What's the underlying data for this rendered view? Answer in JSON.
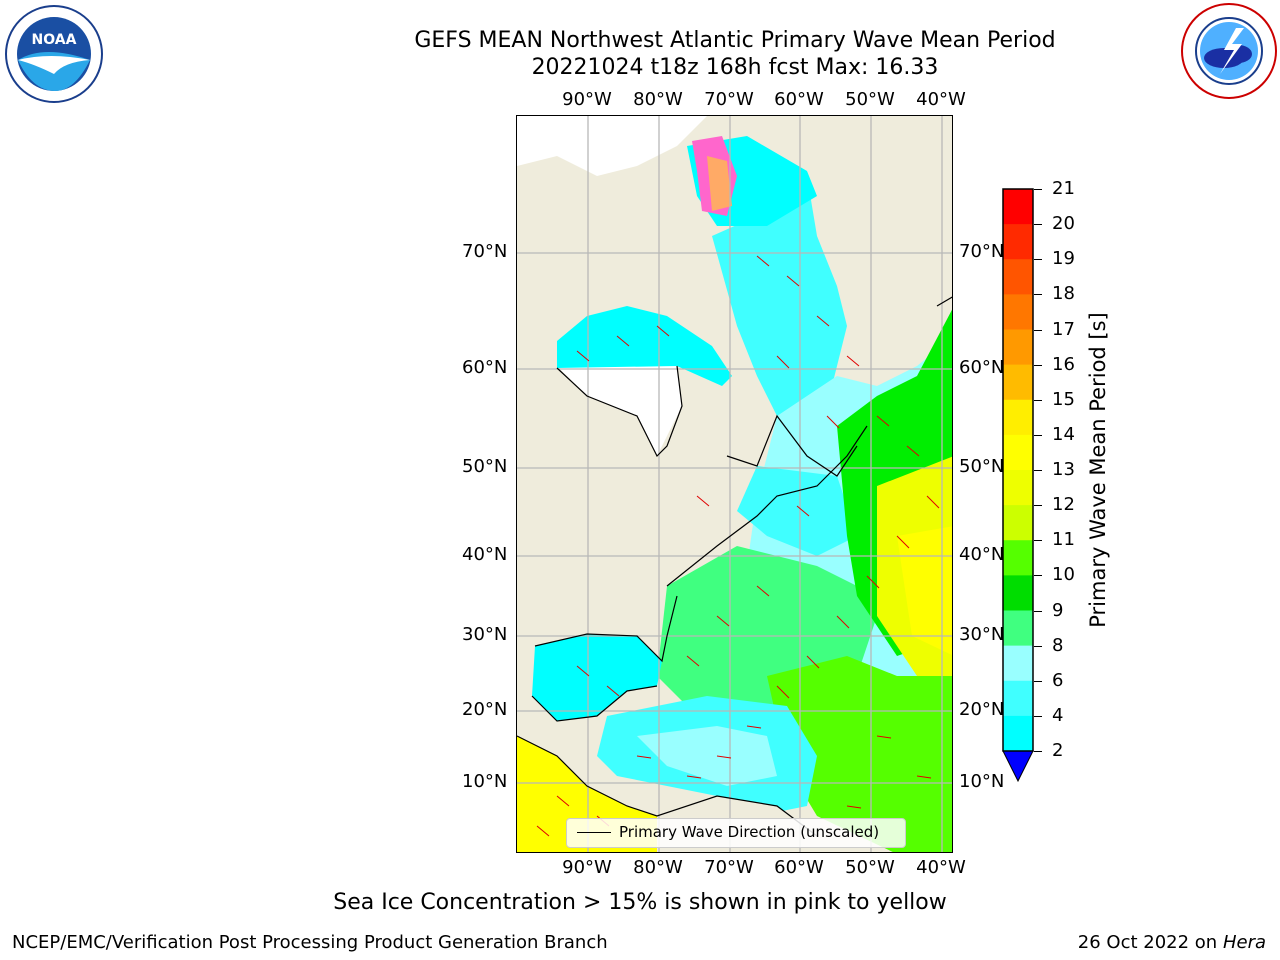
{
  "header": {
    "title_line1": "GEFS MEAN Northwest Atlantic Primary Wave Mean Period",
    "title_line2": "20221024 t18z 168h fcst   Max: 16.33"
  },
  "logos": {
    "left": "NOAA",
    "left_ring": "NATIONAL OCEANIC AND ATMOSPHERIC ADMINISTRATION · U.S. DEPARTMENT OF COMMERCE",
    "right_ring": "NATIONAL WEATHER SERVICE"
  },
  "map": {
    "lon_labels": [
      "90°W",
      "80°W",
      "70°W",
      "60°W",
      "50°W",
      "40°W"
    ],
    "lat_labels": [
      "70°N",
      "60°N",
      "50°N",
      "40°N",
      "30°N",
      "20°N",
      "10°N"
    ],
    "land_color": "#efecdc",
    "ocean_fill_colors": [
      "#00ffff",
      "#40ffff",
      "#99ffff",
      "#40ff80",
      "#00ee00",
      "#55ff00",
      "#ccff00",
      "#eeff00",
      "#ffff00"
    ]
  },
  "legend": {
    "label": "Primary Wave Direction (unscaled)"
  },
  "colorbar": {
    "label": "Primary Wave Mean Period [s]",
    "ticks": [
      "21",
      "20",
      "19",
      "18",
      "17",
      "16",
      "15",
      "14",
      "13",
      "12",
      "11",
      "10",
      "9",
      "8",
      "6",
      "4",
      "2"
    ],
    "colors": [
      "#ff0000",
      "#ff2a00",
      "#ff5500",
      "#ff7700",
      "#ff9900",
      "#ffbb00",
      "#ffee00",
      "#ffff00",
      "#eeff00",
      "#ccff00",
      "#55ff00",
      "#00dd00",
      "#40ff80",
      "#99ffff",
      "#40ffff",
      "#00ffff",
      "#0080ff"
    ],
    "under_color": "#0000ff"
  },
  "notes": {
    "sea_ice": "Sea Ice Concentration > 15% is shown in pink to yellow",
    "footer_left": "NCEP/EMC/Verification Post Processing Product Generation Branch",
    "footer_date": "26 Oct 2022 on ",
    "footer_machine": "Hera"
  }
}
